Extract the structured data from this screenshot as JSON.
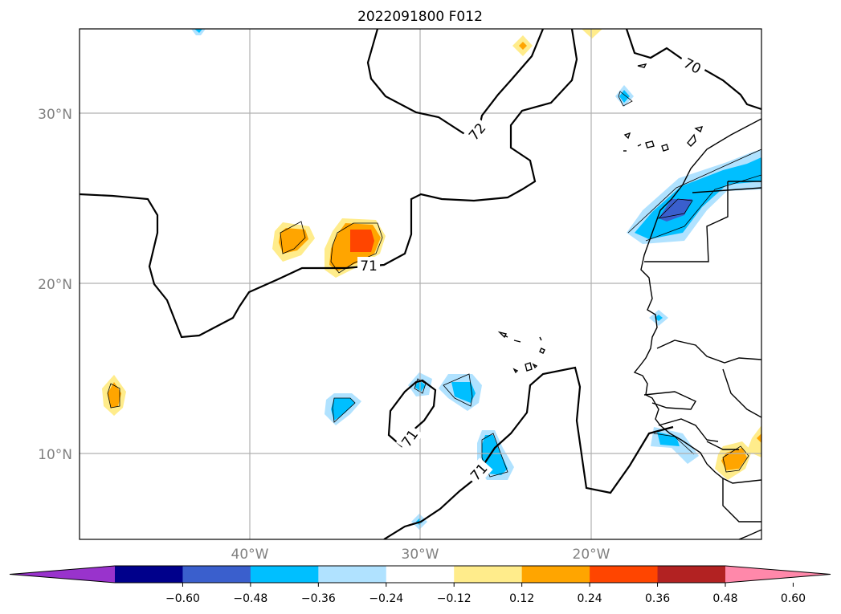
{
  "title": "2022091800 F012",
  "map": {
    "lon_range": [
      -50,
      -10
    ],
    "lat_range": [
      5,
      35
    ],
    "meridians": [
      -40,
      -30,
      -20
    ],
    "parallels": [
      10,
      20,
      30
    ],
    "lon_labels": [
      "40°W",
      "30°W",
      "20°W"
    ],
    "lat_labels": [
      "10°N",
      "20°N",
      "30°N"
    ],
    "gridlines": true,
    "contour_labels": [
      "70",
      "72",
      "71",
      "71",
      "71"
    ]
  },
  "colorbar": {
    "orientation": "horizontal",
    "extend": "both",
    "ticks": [
      "−0.60",
      "−0.48",
      "−0.36",
      "−0.24",
      "−0.12",
      "0.12",
      "0.24",
      "0.36",
      "0.48",
      "0.60"
    ],
    "colors": [
      "#9933cc",
      "#00008b",
      "#3a5fcd",
      "#00bfff",
      "#b0e2ff",
      "#ffffff",
      "#ffec8b",
      "#ffa500",
      "#ff4500",
      "#b22222",
      "#ff88aa"
    ]
  }
}
